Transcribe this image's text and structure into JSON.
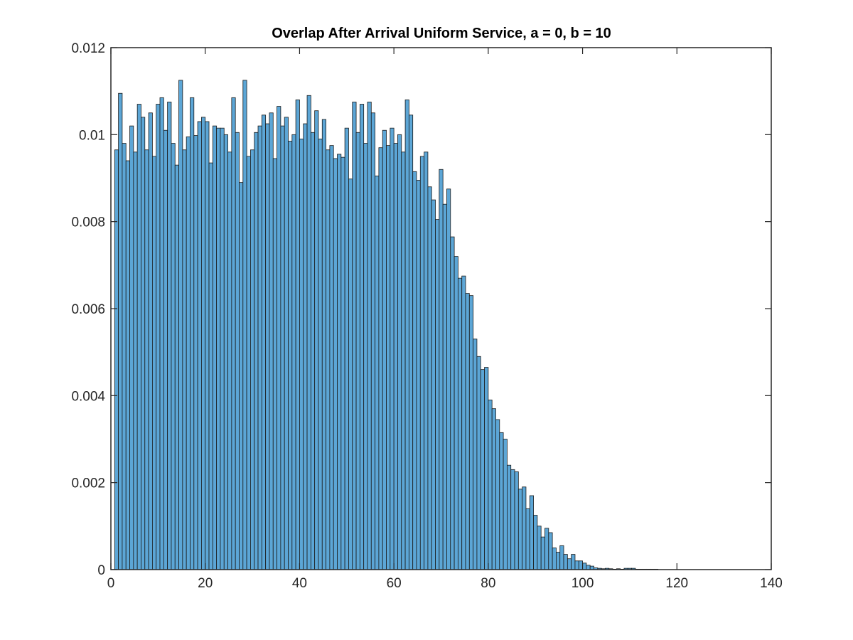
{
  "chart_data": {
    "type": "bar",
    "title": "Overlap After Arrival Uniform Service, a = 0, b = 10",
    "xlabel": "",
    "ylabel": "",
    "xlim": [
      0,
      140
    ],
    "ylim": [
      0,
      0.012
    ],
    "xticks": [
      0,
      20,
      40,
      60,
      80,
      100,
      120,
      140
    ],
    "xtick_labels": [
      "0",
      "20",
      "40",
      "60",
      "80",
      "100",
      "120",
      "140"
    ],
    "yticks": [
      0,
      0.002,
      0.004,
      0.006,
      0.008,
      0.01,
      0.012
    ],
    "ytick_labels": [
      "0",
      "0.002",
      "0.004",
      "0.006",
      "0.008",
      "0.01",
      "0.012"
    ],
    "grid": false,
    "bin_width": 0.8,
    "bin_start": 0.8,
    "bar_color": "#5ca6d6",
    "edge_color": "#1a1a1a",
    "values": [
      0.00965,
      0.01095,
      0.0098,
      0.0094,
      0.0102,
      0.0096,
      0.0107,
      0.0104,
      0.00965,
      0.0105,
      0.0095,
      0.0107,
      0.01085,
      0.0101,
      0.01075,
      0.0098,
      0.0093,
      0.01125,
      0.00965,
      0.00995,
      0.01085,
      0.00998,
      0.0103,
      0.0104,
      0.0103,
      0.00935,
      0.0102,
      0.01015,
      0.01015,
      0.01,
      0.0096,
      0.01085,
      0.01005,
      0.0089,
      0.01125,
      0.0095,
      0.00965,
      0.01005,
      0.0102,
      0.01045,
      0.01025,
      0.0105,
      0.00945,
      0.01065,
      0.0102,
      0.0104,
      0.00985,
      0.01,
      0.0108,
      0.0099,
      0.01025,
      0.0109,
      0.01005,
      0.01055,
      0.0099,
      0.01035,
      0.00965,
      0.00975,
      0.00945,
      0.00955,
      0.00948,
      0.01015,
      0.00898,
      0.01075,
      0.01005,
      0.0107,
      0.0098,
      0.01075,
      0.0105,
      0.00905,
      0.0097,
      0.0101,
      0.00975,
      0.01015,
      0.0098,
      0.01,
      0.0096,
      0.0108,
      0.01045,
      0.00915,
      0.00895,
      0.0095,
      0.0096,
      0.0088,
      0.0085,
      0.00805,
      0.0092,
      0.0084,
      0.00875,
      0.00765,
      0.0072,
      0.0067,
      0.00675,
      0.00635,
      0.0063,
      0.0053,
      0.0049,
      0.0046,
      0.00465,
      0.0039,
      0.0037,
      0.00345,
      0.00315,
      0.003,
      0.0024,
      0.0023,
      0.00225,
      0.00185,
      0.0019,
      0.0014,
      0.0017,
      0.00125,
      0.001,
      0.00075,
      0.00095,
      0.00085,
      0.0005,
      0.0004,
      0.00055,
      0.00035,
      0.00025,
      0.00035,
      0.0002,
      0.0002,
      0.00015,
      0.0001,
      8e-05,
      4e-05,
      3e-05,
      2e-05,
      3e-05,
      2e-05,
      1e-05,
      2e-05,
      1e-05,
      3e-05,
      3e-05,
      3e-05,
      1e-05,
      1e-05,
      1e-05,
      1e-05,
      1e-05,
      1e-05
    ]
  }
}
